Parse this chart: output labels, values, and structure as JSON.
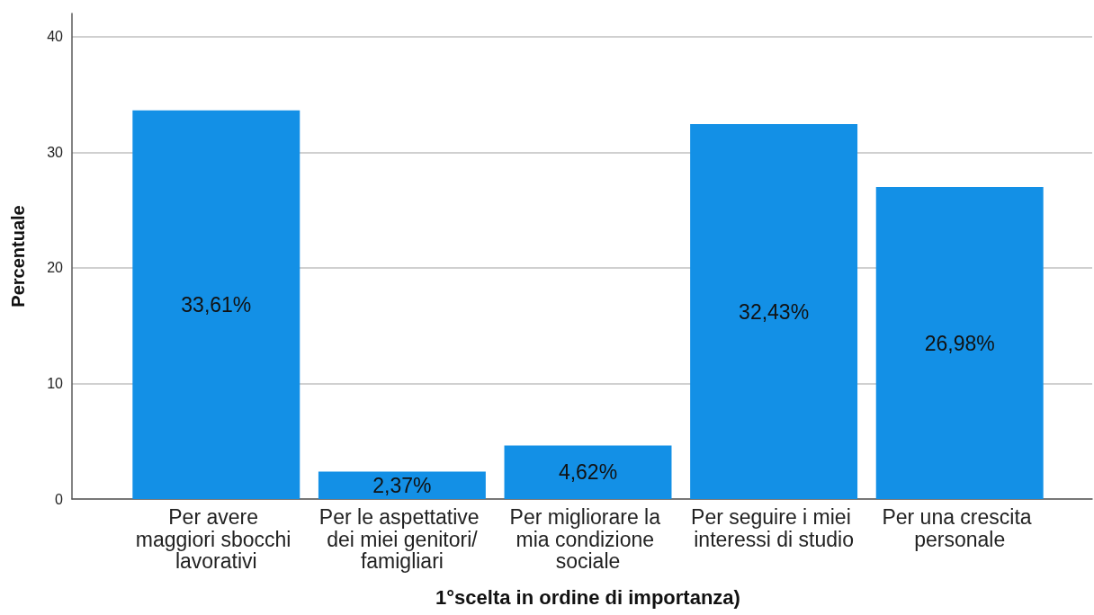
{
  "chart_data": {
    "type": "bar",
    "xlabel": "1°scelta in ordine di importanza)",
    "ylabel": "Percentuale",
    "categories": [
      "Per avere maggiori sbocchi lavorativi",
      "Per le aspettative dei miei genitori/famigliari",
      "Per migliorare la mia condizione sociale",
      "Per seguire i miei interessi di studio",
      "Per una crescita personale"
    ],
    "values": [
      33.61,
      2.37,
      4.62,
      32.43,
      26.98
    ],
    "value_labels": [
      "33,61%",
      "2,37%",
      "4,62%",
      "32,43%",
      "26,98%"
    ],
    "color": "#1390e6",
    "ylim": [
      0,
      42
    ],
    "yticks": [
      0,
      10,
      20,
      30,
      40
    ],
    "grid": "y"
  }
}
